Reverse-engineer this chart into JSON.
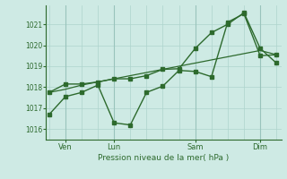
{
  "background_color": "#ceeae4",
  "grid_color": "#aed4cc",
  "line_color": "#2d6a2d",
  "text_color": "#2d6a2d",
  "xlabel": "Pression niveau de la mer( hPa )",
  "yticks": [
    1016,
    1017,
    1018,
    1019,
    1020,
    1021
  ],
  "ylim": [
    1015.5,
    1021.9
  ],
  "xtick_labels": [
    "Ven",
    "Lun",
    "Sam",
    "Dim"
  ],
  "xtick_positions": [
    1,
    4,
    9,
    13
  ],
  "series1_x": [
    0,
    1,
    2,
    3,
    4,
    5,
    6,
    7,
    8,
    9,
    10,
    11,
    12,
    13,
    14
  ],
  "series1_y": [
    1016.7,
    1017.55,
    1017.75,
    1018.1,
    1016.3,
    1016.2,
    1017.75,
    1018.05,
    1018.8,
    1018.75,
    1018.5,
    1021.1,
    1021.5,
    1019.5,
    1019.55
  ],
  "series2_x": [
    0,
    1,
    2,
    3,
    4,
    5,
    6,
    7,
    8,
    9,
    10,
    11,
    12,
    13,
    14
  ],
  "series2_y": [
    1017.75,
    1017.9,
    1018.1,
    1018.25,
    1018.4,
    1018.55,
    1018.7,
    1018.85,
    1019.0,
    1019.15,
    1019.3,
    1019.45,
    1019.6,
    1019.75,
    1019.55
  ],
  "series3_x": [
    0,
    1,
    2,
    3,
    4,
    5,
    6,
    7,
    8,
    9,
    10,
    11,
    12,
    13,
    14
  ],
  "series3_y": [
    1017.75,
    1018.15,
    1018.15,
    1018.25,
    1018.4,
    1018.4,
    1018.55,
    1018.85,
    1018.88,
    1019.85,
    1020.6,
    1021.0,
    1021.55,
    1019.85,
    1019.15
  ],
  "xlim": [
    -0.2,
    14.3
  ],
  "vline_positions": [
    1,
    4,
    9,
    13
  ],
  "marker_size": 2.5,
  "linewidth1": 1.0,
  "linewidth2": 0.9,
  "linewidth3": 1.0,
  "n_minor_vlines": 14
}
